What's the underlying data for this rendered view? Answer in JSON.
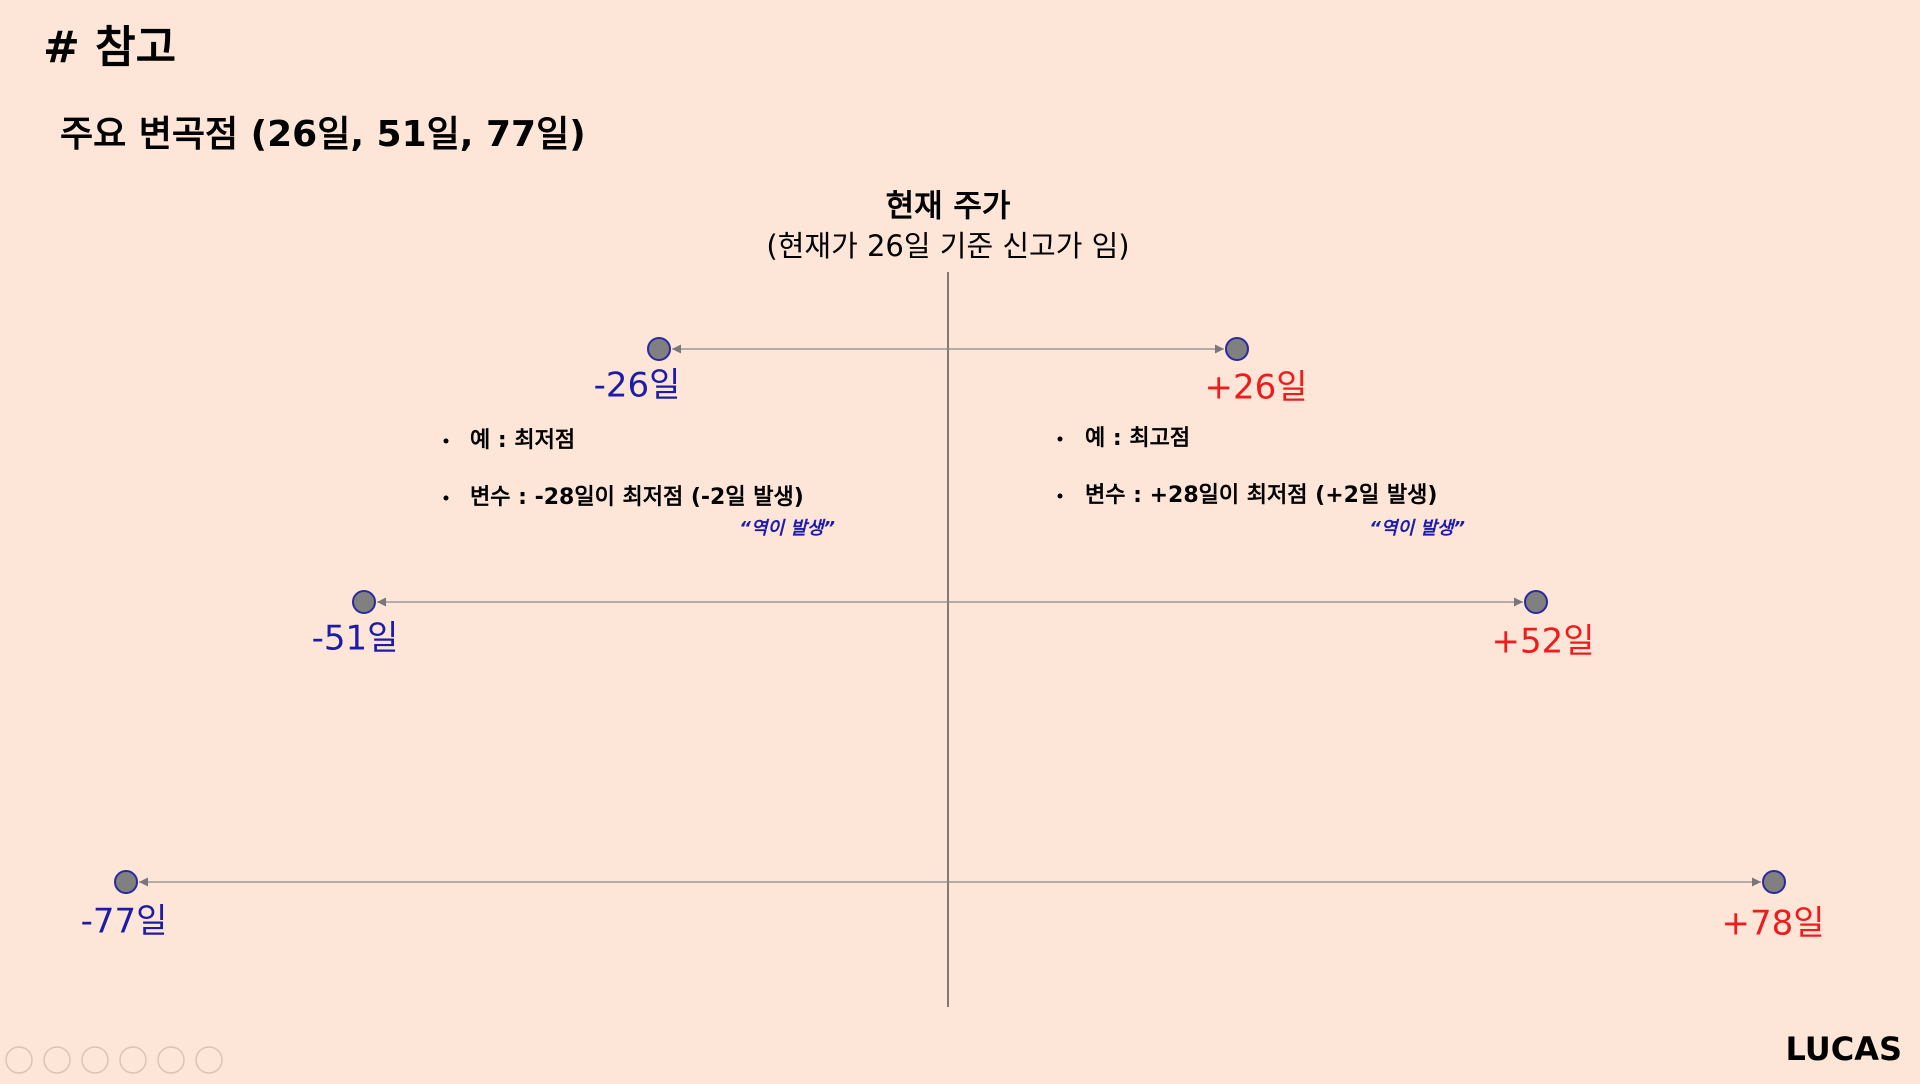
{
  "header": {
    "title": "#  참고",
    "subtitle": "주요 변곡점 (26일, 51일, 77일)"
  },
  "center": {
    "title": "현재 주가",
    "subtitle": "(현재가 26일 기준 신고가 임)"
  },
  "rows": [
    {
      "left": "-26일",
      "right": "+26일"
    },
    {
      "left": "-51일",
      "right": "+52일"
    },
    {
      "left": "-77일",
      "right": "+78일"
    }
  ],
  "left_notes": {
    "bullets": [
      "예 : 최저점",
      "변수 : -28일이 최저점 (-2일 발생)"
    ],
    "note": "“역이 발생”"
  },
  "right_notes": {
    "bullets": [
      "예 : 최고점",
      "변수 : +28일이 최저점 (+2일 발생)"
    ],
    "note": "“역이 발생”"
  },
  "footer": {
    "brand": "LUCAS"
  }
}
